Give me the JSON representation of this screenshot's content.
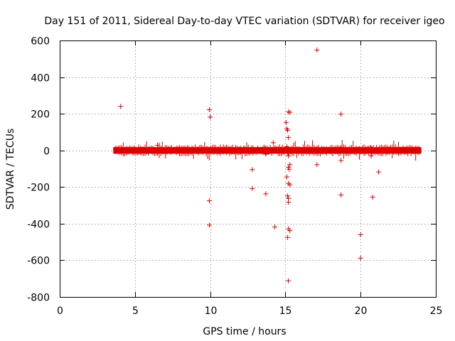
{
  "chart_data": {
    "type": "scatter",
    "title": "Day 151 of 2011, Sidereal Day-to-day VTEC variation (SDTVAR) for receiver igeo",
    "xlabel": "GPS time / hours",
    "ylabel": "SDTVAR / TECUs",
    "xlim": [
      0,
      25
    ],
    "ylim": [
      -800,
      600
    ],
    "xticks": [
      0,
      5,
      10,
      15,
      20,
      25
    ],
    "xtick_labels": [
      "0",
      "5",
      "10",
      "15",
      "20",
      "25"
    ],
    "yticks": [
      -800,
      -600,
      -400,
      -200,
      0,
      200,
      400,
      600
    ],
    "ytick_labels": [
      "-800",
      "-600",
      "-400",
      "-200",
      "0",
      "200",
      "400",
      "600"
    ],
    "grid": true,
    "marker": "plus",
    "color": "#dd0000",
    "dense_band": {
      "x_range": [
        3.7,
        23.9
      ],
      "y_range": [
        -10,
        10
      ]
    },
    "points": [
      [
        4.05,
        240
      ],
      [
        6.5,
        28
      ],
      [
        6.5,
        -15
      ],
      [
        9.95,
        222
      ],
      [
        10.0,
        182
      ],
      [
        9.95,
        -275
      ],
      [
        9.95,
        -408
      ],
      [
        12.8,
        -105
      ],
      [
        12.8,
        -208
      ],
      [
        13.7,
        -237
      ],
      [
        13.6,
        12
      ],
      [
        13.7,
        -20
      ],
      [
        14.2,
        42
      ],
      [
        14.3,
        -418
      ],
      [
        15.05,
        152
      ],
      [
        15.1,
        118
      ],
      [
        15.15,
        110
      ],
      [
        15.2,
        70
      ],
      [
        15.1,
        -145
      ],
      [
        15.2,
        -92
      ],
      [
        15.25,
        -103
      ],
      [
        15.3,
        -78
      ],
      [
        15.2,
        -180
      ],
      [
        15.3,
        -188
      ],
      [
        15.15,
        -248
      ],
      [
        15.2,
        -262
      ],
      [
        15.2,
        -283
      ],
      [
        15.2,
        -428
      ],
      [
        15.3,
        -438
      ],
      [
        15.15,
        -475
      ],
      [
        15.2,
        -712
      ],
      [
        15.2,
        210
      ],
      [
        15.3,
        208
      ],
      [
        15.1,
        20
      ],
      [
        15.2,
        -30
      ],
      [
        17.1,
        548
      ],
      [
        17.1,
        -78
      ],
      [
        18.7,
        198
      ],
      [
        18.7,
        -55
      ],
      [
        18.7,
        -243
      ],
      [
        20.0,
        -460
      ],
      [
        20.0,
        -588
      ],
      [
        20.7,
        -30
      ],
      [
        20.8,
        -255
      ],
      [
        21.2,
        -118
      ],
      [
        18.7,
        15
      ],
      [
        20.7,
        12
      ]
    ]
  }
}
